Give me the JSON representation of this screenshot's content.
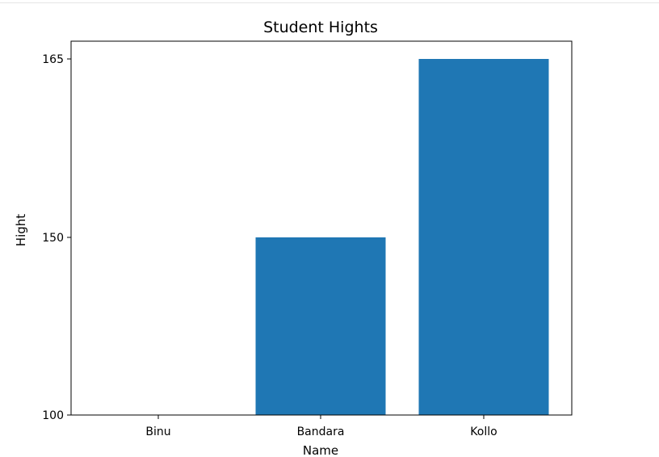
{
  "chart_data": {
    "type": "bar",
    "title": "Student Hights",
    "xlabel": "Name",
    "ylabel": "Hight",
    "categories": [
      "Binu",
      "Bandara",
      "Kollo"
    ],
    "values": [
      100,
      150,
      165
    ],
    "yticks": [
      "100",
      "150",
      "165"
    ],
    "bar_color": "#1f77b4",
    "grid": false,
    "legend": false
  }
}
